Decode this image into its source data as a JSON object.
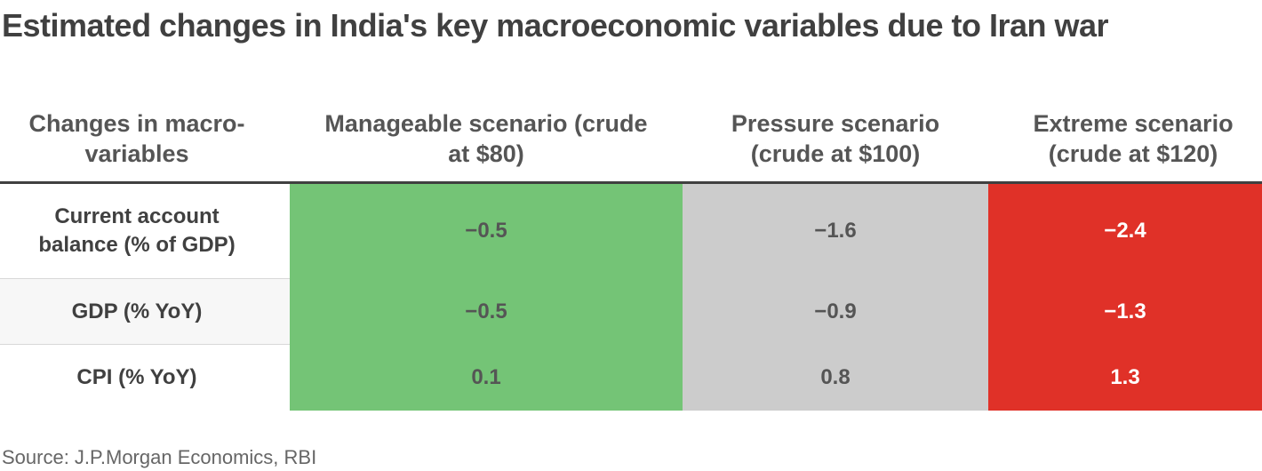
{
  "title": "Estimated changes in India's key macroeconomic variables due to Iran war",
  "source": "Source: J.P.Morgan Economics, RBI",
  "colors": {
    "manageable": "#74c476",
    "pressure": "#cccccc",
    "extreme": "#e03128",
    "text_on_dark": "#ffffff",
    "text_default": "#555555"
  },
  "chart_data": {
    "type": "table",
    "columns": [
      "Changes in macro-variables",
      "Manageable scenario (crude at $80)",
      "Pressure scenario (crude at $100)",
      "Extreme scenario (crude at $120)"
    ],
    "rows": [
      {
        "label": "Current account balance (% of GDP)",
        "values": [
          "−0.5",
          "−1.6",
          "−2.4"
        ]
      },
      {
        "label": "GDP (% YoY)",
        "values": [
          "−0.5",
          "−0.9",
          "−1.3"
        ]
      },
      {
        "label": "CPI (% YoY)",
        "values": [
          "0.1",
          "0.8",
          "1.3"
        ]
      }
    ]
  }
}
